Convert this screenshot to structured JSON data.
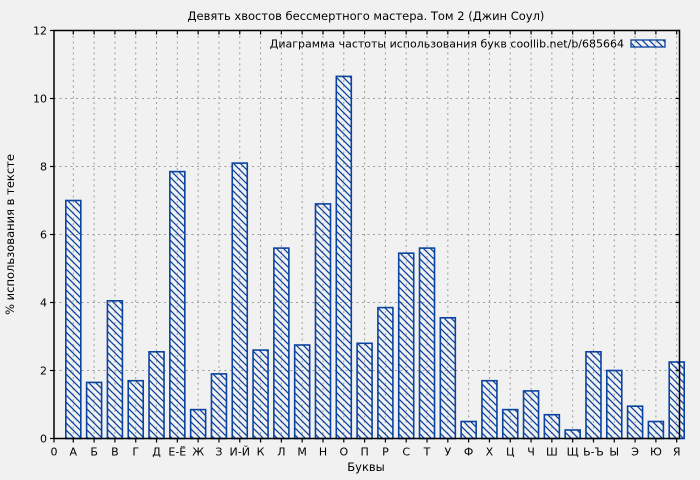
{
  "title": "Девять хвостов бессмертного мастера. Том 2 (Джин Соул)",
  "legend": {
    "label": "Диаграмма частоты использования букв coollib.net/b/685664",
    "position": "top-right"
  },
  "axes": {
    "xlabel": "Буквы",
    "ylabel": "% использования в тексте",
    "origin_label": "0",
    "yticks": [
      0,
      2,
      4,
      6,
      8,
      10,
      12
    ]
  },
  "colors": {
    "bar": "#0a43a0",
    "grid": "#9c9c9c",
    "axis": "#000000",
    "background": "#f1f1f1",
    "text": "#000000"
  },
  "chart_data": {
    "type": "bar",
    "title": "Девять хвостов бессмертного мастера. Том 2 (Джин Соул)",
    "legend_label": "Диаграмма частоты использования букв coollib.net/b/685664",
    "legend_position": "top-right",
    "xlabel": "Буквы",
    "ylabel": "% использования в тексте",
    "ylim": [
      0,
      12
    ],
    "yticks": [
      0,
      2,
      4,
      6,
      8,
      10,
      12
    ],
    "grid": true,
    "bar_style": "hatched-diagonal",
    "bar_color": "#0a43a0",
    "categories": [
      "А",
      "Б",
      "В",
      "Г",
      "Д",
      "Е-Ё",
      "Ж",
      "З",
      "И-Й",
      "К",
      "Л",
      "М",
      "Н",
      "О",
      "П",
      "Р",
      "С",
      "Т",
      "У",
      "Ф",
      "Х",
      "Ц",
      "Ч",
      "Ш",
      "Щ",
      "Ь-Ъ",
      "Ы",
      "Э",
      "Ю",
      "Я"
    ],
    "values": [
      7.0,
      1.65,
      4.05,
      1.7,
      2.55,
      7.85,
      0.85,
      1.9,
      8.1,
      2.6,
      5.6,
      2.75,
      6.9,
      10.65,
      2.8,
      3.85,
      5.45,
      5.6,
      3.55,
      0.5,
      1.7,
      0.85,
      1.4,
      0.7,
      0.25,
      2.55,
      2.0,
      0.95,
      0.5,
      2.25
    ]
  }
}
